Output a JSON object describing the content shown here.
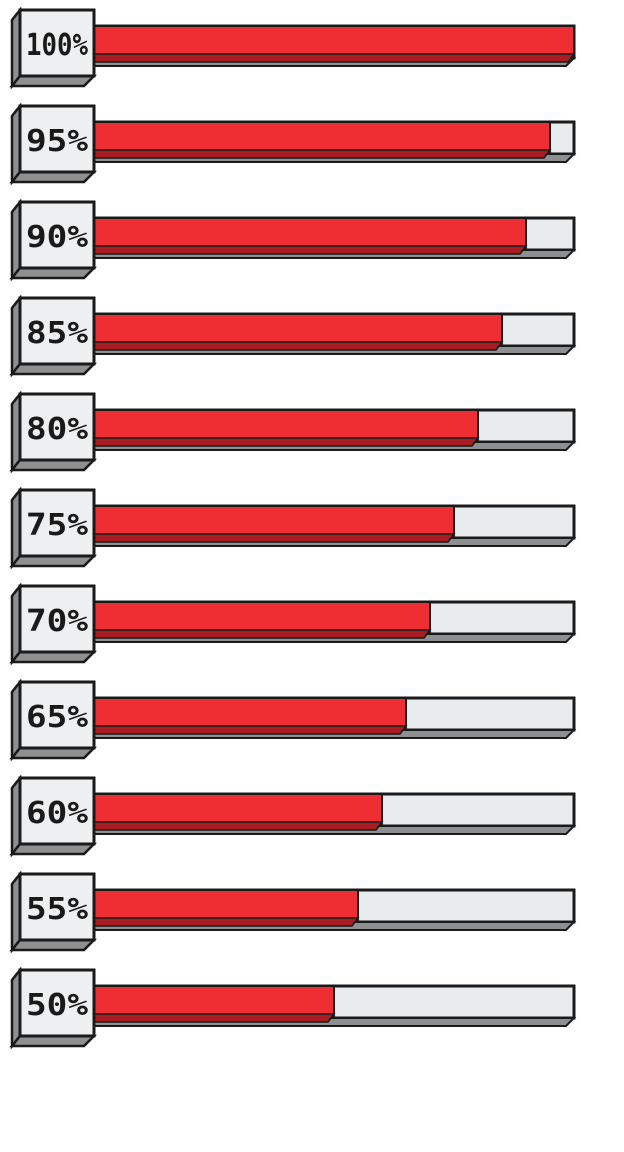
{
  "colors": {
    "fill": "#ee2e33",
    "fill_shadow": "#a81d21",
    "track": "#e9ecee",
    "outline": "#1a1a1a",
    "badge_face": "#eeeff0",
    "badge_side": "#8e8f91"
  },
  "bars": [
    {
      "label": "100%",
      "value": 100
    },
    {
      "label": "95%",
      "value": 95
    },
    {
      "label": "90%",
      "value": 90
    },
    {
      "label": "85%",
      "value": 85
    },
    {
      "label": "80%",
      "value": 80
    },
    {
      "label": "75%",
      "value": 75
    },
    {
      "label": "70%",
      "value": 70
    },
    {
      "label": "65%",
      "value": 65
    },
    {
      "label": "60%",
      "value": 60
    },
    {
      "label": "55%",
      "value": 55
    },
    {
      "label": "50%",
      "value": 50
    }
  ]
}
